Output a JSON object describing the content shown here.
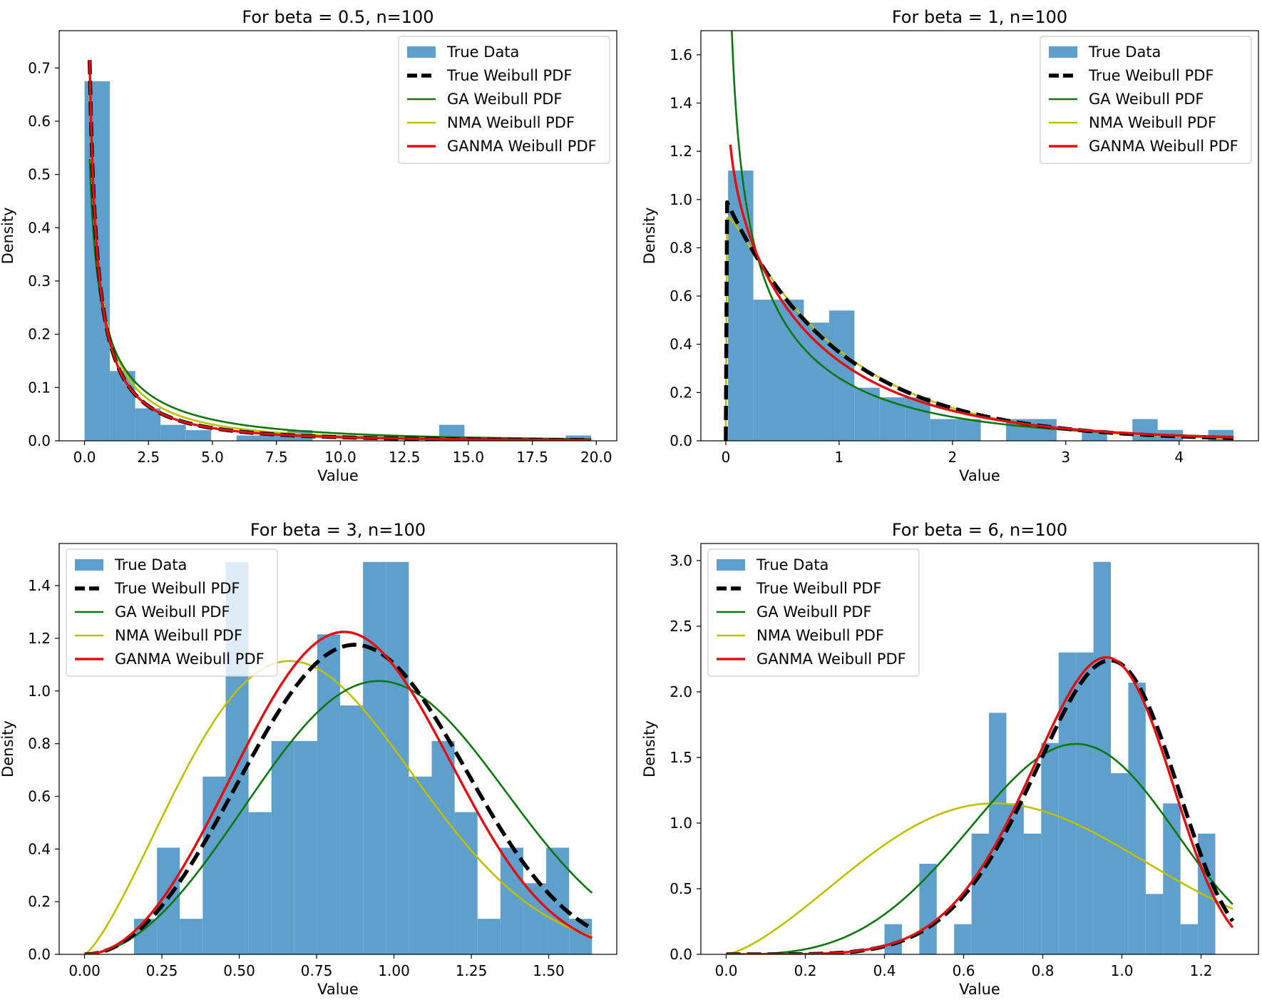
{
  "chart_data": [
    {
      "type": "histogram",
      "title": "For beta = 0.5, n=100",
      "xlabel": "Value",
      "ylabel": "Density",
      "xlim": [
        -0.99,
        20.8
      ],
      "ylim": [
        0,
        0.77
      ],
      "xticks": [
        0.0,
        2.5,
        5.0,
        7.5,
        10.0,
        12.5,
        15.0,
        17.5,
        20.0
      ],
      "xtick_labels": [
        "0.0",
        "2.5",
        "5.0",
        "7.5",
        "10.0",
        "12.5",
        "15.0",
        "17.5",
        "20.0"
      ],
      "yticks": [
        0.0,
        0.1,
        0.2,
        0.3,
        0.4,
        0.5,
        0.6,
        0.7
      ],
      "ytick_labels": [
        "0.0",
        "0.1",
        "0.2",
        "0.3",
        "0.4",
        "0.5",
        "0.6",
        "0.7"
      ],
      "legend_position": "top-right",
      "histogram": {
        "name": "True Data",
        "bins": [
          0.0,
          0.99,
          1.98,
          2.97,
          3.96,
          4.95,
          5.94,
          6.93,
          7.92,
          8.91,
          9.9,
          10.89,
          11.88,
          12.87,
          13.86,
          14.85,
          15.84,
          16.83,
          17.82,
          18.81,
          19.8
        ],
        "densities": [
          0.675,
          0.131,
          0.061,
          0.03,
          0.02,
          0.0,
          0.01,
          0.01,
          0.02,
          0.0,
          0.0,
          0.0,
          0.0,
          0.0,
          0.03,
          0.0,
          0.0,
          0.0,
          0.0,
          0.01
        ]
      },
      "series": [
        {
          "name": "True Weibull PDF",
          "dist": "weibull",
          "shape": 0.5,
          "scale": 1.0,
          "x_start": 0.2,
          "x_end": 19.8,
          "points": [
            [
              0.2,
              0.716
            ],
            [
              0.5,
              0.35
            ],
            [
              1,
              0.184
            ],
            [
              2,
              0.086
            ],
            [
              3,
              0.051
            ],
            [
              5,
              0.024
            ],
            [
              7.5,
              0.012
            ],
            [
              10,
              0.007
            ],
            [
              15,
              0.003
            ],
            [
              19.8,
              0.001
            ]
          ]
        },
        {
          "name": "GA Weibull PDF",
          "dist": "weibull",
          "shape": 0.6,
          "scale": 2.5,
          "x_start": 0.2,
          "x_end": 19.8,
          "points": [
            [
              0.2,
              0.616
            ],
            [
              0.5,
              0.37
            ],
            [
              1,
              0.228
            ],
            [
              2,
              0.128
            ],
            [
              3,
              0.085
            ],
            [
              5,
              0.045
            ],
            [
              7.5,
              0.024
            ],
            [
              10,
              0.014
            ],
            [
              15,
              0.005
            ],
            [
              19.8,
              0.002
            ]
          ]
        },
        {
          "name": "NMA Weibull PDF",
          "dist": "weibull",
          "shape": 0.55,
          "scale": 1.5,
          "x_start": 0.2,
          "x_end": 19.8,
          "points": [
            [
              0.2,
              0.662
            ],
            [
              0.5,
              0.364
            ],
            [
              1,
              0.205
            ],
            [
              2,
              0.105
            ],
            [
              3,
              0.067
            ],
            [
              5,
              0.033
            ],
            [
              7.5,
              0.017
            ],
            [
              10,
              0.009
            ],
            [
              15,
              0.004
            ],
            [
              19.8,
              0.002
            ]
          ]
        },
        {
          "name": "GANMA Weibull PDF",
          "dist": "weibull",
          "shape": 0.5,
          "scale": 1.0,
          "x_start": 0.2,
          "x_end": 19.8,
          "points": [
            [
              0.2,
              0.716
            ],
            [
              0.5,
              0.35
            ],
            [
              1,
              0.184
            ],
            [
              2,
              0.086
            ],
            [
              3,
              0.051
            ],
            [
              5,
              0.024
            ],
            [
              7.5,
              0.012
            ],
            [
              10,
              0.007
            ],
            [
              15,
              0.003
            ],
            [
              19.8,
              0.001
            ]
          ]
        }
      ]
    },
    {
      "type": "histogram",
      "title": "For beta = 1, n=100",
      "xlabel": "Value",
      "ylabel": "Density",
      "xlim": [
        -0.22,
        4.7
      ],
      "ylim": [
        0,
        1.7
      ],
      "xticks": [
        0,
        1,
        2,
        3,
        4
      ],
      "xtick_labels": [
        "0",
        "1",
        "2",
        "3",
        "4"
      ],
      "yticks": [
        0.0,
        0.2,
        0.4,
        0.6,
        0.8,
        1.0,
        1.2,
        1.4,
        1.6
      ],
      "ytick_labels": [
        "0.0",
        "0.2",
        "0.4",
        "0.6",
        "0.8",
        "1.0",
        "1.2",
        "1.4",
        "1.6"
      ],
      "legend_position": "top-right",
      "histogram": {
        "name": "True Data",
        "bins": [
          0.02,
          0.243,
          0.466,
          0.689,
          0.912,
          1.135,
          1.358,
          1.581,
          1.804,
          2.027,
          2.25,
          2.473,
          2.696,
          2.919,
          3.142,
          3.365,
          3.588,
          3.811,
          4.034,
          4.257,
          4.48
        ],
        "densities": [
          1.12,
          0.585,
          0.585,
          0.49,
          0.54,
          0.22,
          0.18,
          0.18,
          0.09,
          0.09,
          0.0,
          0.09,
          0.09,
          0.0,
          0.045,
          0.0,
          0.09,
          0.045,
          0.0,
          0.045
        ]
      },
      "series": [
        {
          "name": "True Weibull PDF",
          "dist": "weibull",
          "shape": 1.0,
          "scale": 1.0,
          "x_start": 0.0,
          "x_end": 4.48,
          "points": [
            [
              0,
              1.0
            ],
            [
              0.5,
              0.607
            ],
            [
              1,
              0.368
            ],
            [
              2,
              0.135
            ],
            [
              3,
              0.05
            ],
            [
              4,
              0.018
            ],
            [
              4.48,
              0.011
            ]
          ]
        },
        {
          "name": "GA Weibull PDF",
          "dist": "weibull",
          "shape": 0.72,
          "scale": 0.78,
          "x_start": 0.04,
          "x_end": 4.48,
          "points": [
            [
              0.04,
              1.64
            ],
            [
              0.1,
              1.2
            ],
            [
              0.5,
              0.56
            ],
            [
              1,
              0.32
            ],
            [
              2,
              0.12
            ],
            [
              3,
              0.05
            ],
            [
              4,
              0.02
            ],
            [
              4.48,
              0.012
            ]
          ]
        },
        {
          "name": "NMA Weibull PDF",
          "dist": "weibull",
          "shape": 1.02,
          "scale": 1.0,
          "x_start": 0.0,
          "x_end": 4.48,
          "points": [
            [
              0,
              0.0
            ],
            [
              0.04,
              0.96
            ],
            [
              0.5,
              0.6
            ],
            [
              1,
              0.37
            ],
            [
              2,
              0.13
            ],
            [
              3,
              0.05
            ],
            [
              4,
              0.02
            ],
            [
              4.48,
              0.011
            ]
          ]
        },
        {
          "name": "GANMA Weibull PDF",
          "dist": "weibull",
          "shape": 0.9,
          "scale": 0.95,
          "x_start": 0.04,
          "x_end": 4.48,
          "points": [
            [
              0.04,
              1.1
            ],
            [
              0.5,
              0.63
            ],
            [
              1,
              0.36
            ],
            [
              2,
              0.13
            ],
            [
              3,
              0.05
            ],
            [
              4,
              0.015
            ],
            [
              4.48,
              0.01
            ]
          ]
        }
      ]
    },
    {
      "type": "histogram",
      "title": "For beta = 3, n=100",
      "xlabel": "Value",
      "ylabel": "Density",
      "xlim": [
        -0.082,
        1.72
      ],
      "ylim": [
        0,
        1.56
      ],
      "xticks": [
        0.0,
        0.25,
        0.5,
        0.75,
        1.0,
        1.25,
        1.5
      ],
      "xtick_labels": [
        "0.00",
        "0.25",
        "0.50",
        "0.75",
        "1.00",
        "1.25",
        "1.50"
      ],
      "yticks": [
        0.0,
        0.2,
        0.4,
        0.6,
        0.8,
        1.0,
        1.2,
        1.4
      ],
      "ytick_labels": [
        "0.0",
        "0.2",
        "0.4",
        "0.6",
        "0.8",
        "1.0",
        "1.2",
        "1.4"
      ],
      "legend_position": "top-left",
      "histogram": {
        "name": "True Data",
        "bins": [
          0.16,
          0.234,
          0.308,
          0.382,
          0.456,
          0.53,
          0.604,
          0.678,
          0.752,
          0.826,
          0.9,
          0.974,
          1.048,
          1.122,
          1.196,
          1.27,
          1.344,
          1.418,
          1.492,
          1.566,
          1.64
        ],
        "densities": [
          0.135,
          0.405,
          0.135,
          0.675,
          1.49,
          0.54,
          0.81,
          0.81,
          1.215,
          0.945,
          1.49,
          1.49,
          0.675,
          0.81,
          0.54,
          0.135,
          0.405,
          0.27,
          0.405,
          0.135
        ]
      },
      "series": [
        {
          "name": "True Weibull PDF",
          "dist": "weibull",
          "shape": 3.0,
          "scale": 1.0,
          "x_start": 0.0,
          "x_end": 1.64,
          "points": [
            [
              0,
              0.0
            ],
            [
              0.25,
              0.185
            ],
            [
              0.5,
              0.662
            ],
            [
              0.75,
              1.105
            ],
            [
              0.873,
              1.18
            ],
            [
              1.0,
              1.104
            ],
            [
              1.25,
              0.665
            ],
            [
              1.5,
              0.233
            ],
            [
              1.64,
              0.099
            ]
          ]
        },
        {
          "name": "GA Weibull PDF",
          "dist": "weibull",
          "shape": 2.9,
          "scale": 1.1,
          "x_start": 0.0,
          "x_end": 1.64,
          "points": [
            [
              0,
              0.0
            ],
            [
              0.25,
              0.13
            ],
            [
              0.5,
              0.5
            ],
            [
              0.75,
              0.9
            ],
            [
              0.93,
              1.06
            ],
            [
              1.0,
              1.05
            ],
            [
              1.25,
              0.75
            ],
            [
              1.5,
              0.36
            ],
            [
              1.64,
              0.2
            ]
          ]
        },
        {
          "name": "NMA Weibull PDF",
          "dist": "weibull",
          "shape": 2.3,
          "scale": 0.85,
          "x_start": 0.0,
          "x_end": 1.64,
          "points": [
            [
              0,
              0.0
            ],
            [
              0.25,
              0.42
            ],
            [
              0.5,
              0.87
            ],
            [
              0.64,
              0.99
            ],
            [
              0.75,
              0.96
            ],
            [
              1.0,
              0.72
            ],
            [
              1.25,
              0.4
            ],
            [
              1.5,
              0.17
            ],
            [
              1.64,
              0.12
            ]
          ]
        },
        {
          "name": "GANMA Weibull PDF",
          "dist": "weibull",
          "shape": 3.0,
          "scale": 0.96,
          "x_start": 0.0,
          "x_end": 1.64,
          "points": [
            [
              0,
              0.0
            ],
            [
              0.25,
              0.22
            ],
            [
              0.5,
              0.75
            ],
            [
              0.75,
              1.16
            ],
            [
              0.84,
              1.18
            ],
            [
              1.0,
              1.04
            ],
            [
              1.25,
              0.57
            ],
            [
              1.5,
              0.18
            ],
            [
              1.64,
              0.08
            ]
          ]
        }
      ]
    },
    {
      "type": "histogram",
      "title": "For beta = 6, n=100",
      "xlabel": "Value",
      "ylabel": "Density",
      "xlim": [
        -0.064,
        1.345
      ],
      "ylim": [
        0,
        3.13
      ],
      "xticks": [
        0.0,
        0.2,
        0.4,
        0.6,
        0.8,
        1.0,
        1.2
      ],
      "xtick_labels": [
        "0.0",
        "0.2",
        "0.4",
        "0.6",
        "0.8",
        "1.0",
        "1.2"
      ],
      "yticks": [
        0.0,
        0.5,
        1.0,
        1.5,
        2.0,
        2.5,
        3.0
      ],
      "ytick_labels": [
        "0.0",
        "0.5",
        "1.0",
        "1.5",
        "2.0",
        "2.5",
        "3.0"
      ],
      "legend_position": "top-left",
      "histogram": {
        "name": "True Data",
        "bins": [
          0.4,
          0.444,
          0.488,
          0.532,
          0.576,
          0.62,
          0.664,
          0.708,
          0.752,
          0.796,
          0.84,
          0.884,
          0.928,
          0.972,
          1.016,
          1.06,
          1.104,
          1.148,
          1.192,
          1.236,
          1.28
        ],
        "densities": [
          0.23,
          0.0,
          0.69,
          0.0,
          0.23,
          0.92,
          1.84,
          1.15,
          0.92,
          1.61,
          2.3,
          2.3,
          2.99,
          1.38,
          2.07,
          0.46,
          1.15,
          0.23,
          0.92,
          0.0
        ]
      },
      "series": [
        {
          "name": "True Weibull PDF",
          "dist": "weibull",
          "shape": 6.0,
          "scale": 1.0,
          "x_start": 0.0,
          "x_end": 1.28,
          "points": [
            [
              0,
              0.0
            ],
            [
              0.4,
              0.024
            ],
            [
              0.6,
              0.26
            ],
            [
              0.8,
              1.2
            ],
            [
              0.97,
              2.23
            ],
            [
              1.0,
              2.21
            ],
            [
              1.2,
              0.95
            ],
            [
              1.28,
              0.26
            ]
          ]
        },
        {
          "name": "GA Weibull PDF",
          "dist": "weibull",
          "shape": 4.0,
          "scale": 0.95,
          "x_start": 0.0,
          "x_end": 1.28,
          "points": [
            [
              0,
              0.0
            ],
            [
              0.2,
              0.03
            ],
            [
              0.4,
              0.2
            ],
            [
              0.6,
              0.67
            ],
            [
              0.8,
              1.22
            ],
            [
              0.89,
              1.36
            ],
            [
              1.0,
              1.26
            ],
            [
              1.2,
              0.8
            ],
            [
              1.28,
              0.56
            ]
          ]
        },
        {
          "name": "NMA Weibull PDF",
          "dist": "weibull",
          "shape": 2.4,
          "scale": 0.85,
          "x_start": 0.0,
          "x_end": 1.28,
          "points": [
            [
              0,
              0.0
            ],
            [
              0.2,
              0.35
            ],
            [
              0.4,
              0.78
            ],
            [
              0.63,
              1.02
            ],
            [
              0.8,
              0.95
            ],
            [
              1.0,
              0.72
            ],
            [
              1.2,
              0.51
            ],
            [
              1.28,
              0.39
            ]
          ]
        },
        {
          "name": "GANMA Weibull PDF",
          "dist": "weibull",
          "shape": 6.0,
          "scale": 0.99,
          "x_start": 0.0,
          "x_end": 1.28,
          "points": [
            [
              0,
              0.0
            ],
            [
              0.4,
              0.03
            ],
            [
              0.6,
              0.3
            ],
            [
              0.8,
              1.3
            ],
            [
              0.96,
              2.22
            ],
            [
              1.0,
              2.16
            ],
            [
              1.2,
              0.82
            ],
            [
              1.28,
              0.24
            ]
          ]
        }
      ]
    }
  ],
  "styles": {
    "histogram_color": "#5f9fcb",
    "series_colors": {
      "True Weibull PDF": "#000000",
      "GA Weibull PDF": "#0d760d",
      "NMA Weibull PDF": "#bfbf00",
      "GANMA Weibull PDF": "#e01010"
    }
  }
}
